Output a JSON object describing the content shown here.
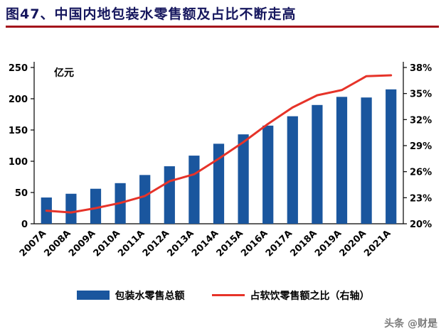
{
  "header": {
    "title": "图47、中国内地包装水零售额及占比不断走高"
  },
  "chart_data": {
    "type": "bar",
    "subtype": "bar+line dual axis",
    "title": "中国内地包装水零售额及占比",
    "unit_label": "亿元",
    "categories": [
      "2007A",
      "2008A",
      "2009A",
      "2010A",
      "2011A",
      "2012A",
      "2013A",
      "2014A",
      "2015A",
      "2016A",
      "2017A",
      "2018A",
      "2019A",
      "2020A",
      "2021A"
    ],
    "series": [
      {
        "name": "包装水零售总额",
        "type": "bar",
        "axis": "left",
        "color": "#1a569e",
        "values": [
          42,
          48,
          56,
          65,
          78,
          92,
          109,
          128,
          143,
          157,
          172,
          190,
          203,
          202,
          215
        ]
      },
      {
        "name": "占软饮零售额之比（右轴）",
        "type": "line",
        "axis": "right",
        "color": "#e63329",
        "values": [
          21.5,
          21.3,
          21.8,
          22.4,
          23.2,
          24.9,
          25.7,
          27.5,
          29.4,
          31.5,
          33.4,
          34.8,
          35.4,
          37.0,
          37.1
        ]
      }
    ],
    "left_axis": {
      "min": 0,
      "max": 250,
      "step": 50,
      "ticks": [
        "0",
        "50",
        "100",
        "150",
        "200",
        "250"
      ]
    },
    "right_axis": {
      "min": 20,
      "max": 38,
      "step": 3,
      "ticks": [
        "20%",
        "23%",
        "26%",
        "29%",
        "32%",
        "35%",
        "38%"
      ]
    },
    "grid": false,
    "legend_position": "bottom"
  },
  "watermark": "头条 @财是",
  "colors": {
    "bar": "#1a569e",
    "line": "#e63329",
    "title_text": "#16175e",
    "title_underline": "#a3111b"
  }
}
